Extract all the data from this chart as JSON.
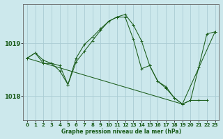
{
  "background_color": "#cce8ec",
  "plot_bg_color": "#cce8ec",
  "line_color": "#1a5c1a",
  "grid_color": "#aaccd4",
  "title": "Graphe pression niveau de la mer (hPa)",
  "yticks": [
    1018,
    1019
  ],
  "ylim": [
    1017.55,
    1019.75
  ],
  "xlim": [
    -0.5,
    23.5
  ],
  "xticks": [
    0,
    1,
    2,
    3,
    4,
    5,
    6,
    7,
    8,
    9,
    10,
    11,
    12,
    13,
    14,
    15,
    16,
    17,
    18,
    19,
    20,
    21,
    22,
    23
  ],
  "series": [
    {
      "x": [
        0,
        1,
        2,
        3,
        4,
        5,
        6,
        7,
        8,
        9,
        10,
        11,
        12,
        13,
        14,
        15,
        16,
        17,
        18,
        19,
        20,
        21,
        22,
        23
      ],
      "y": [
        1018.72,
        1018.82,
        1018.68,
        1018.62,
        1018.58,
        1018.22,
        1018.65,
        1018.85,
        1019.05,
        1019.25,
        1019.42,
        1019.5,
        1019.55,
        1019.35,
        1019.05,
        1018.58,
        1018.28,
        1018.15,
        1017.97,
        1017.85,
        1017.92,
        1018.55,
        1019.18,
        1019.22
      ]
    },
    {
      "x": [
        0,
        1,
        2,
        3,
        4,
        5,
        6,
        7,
        8,
        9,
        10,
        11,
        12,
        13,
        14,
        15,
        16,
        17,
        18,
        19,
        20,
        21,
        22
      ],
      "y": [
        1018.72,
        1018.82,
        1018.62,
        1018.62,
        1018.48,
        1018.22,
        1018.72,
        1018.98,
        1019.12,
        1019.28,
        1019.42,
        1019.5,
        1019.5,
        1019.08,
        1018.52,
        1018.58,
        1018.28,
        1018.18,
        1017.97,
        1017.85,
        1017.92,
        1017.92,
        1017.92
      ]
    },
    {
      "x": [
        0,
        19,
        23
      ],
      "y": [
        1018.72,
        1017.85,
        1019.22
      ]
    }
  ]
}
